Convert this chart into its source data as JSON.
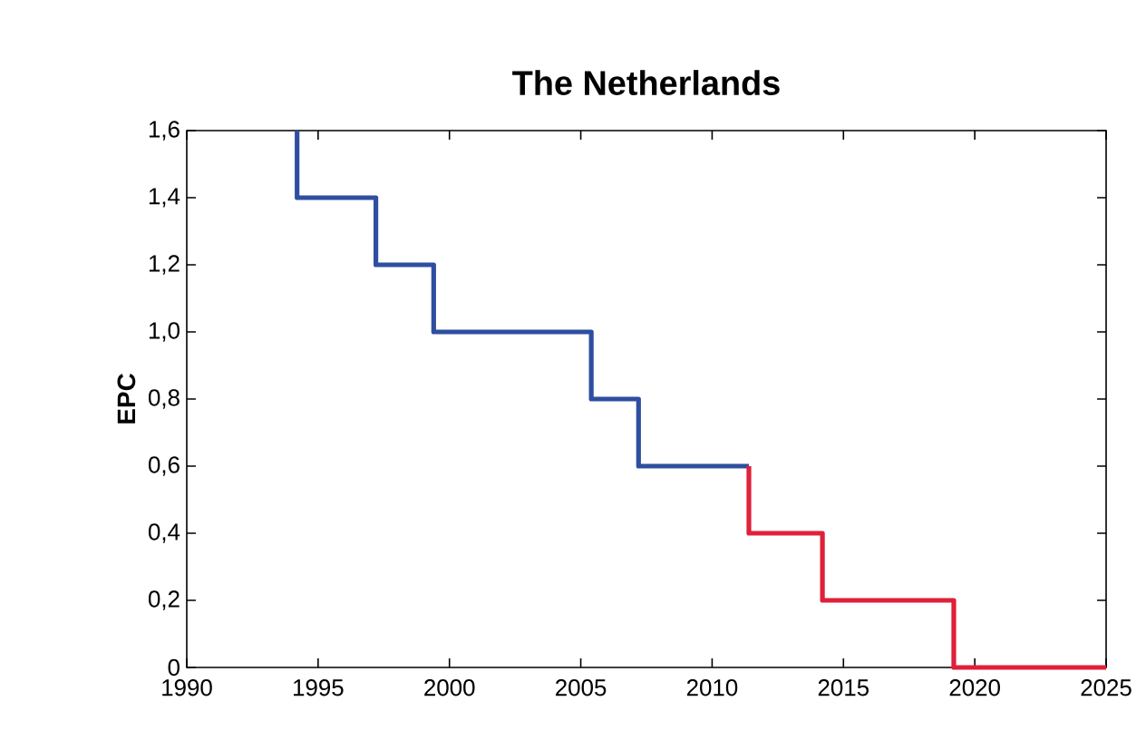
{
  "chart_data": {
    "type": "step",
    "title": "The Netherlands",
    "ylabel": "EPC",
    "series": [
      {
        "color": "#2e4ea0",
        "x": [
          1994.2,
          1994.2,
          1997.2,
          1999.4,
          2005.4,
          2007.2,
          2011.4
        ],
        "values": [
          1.6,
          1.4,
          1.2,
          1.0,
          0.8,
          0.6,
          0.6
        ]
      },
      {
        "color": "#e0203a",
        "x": [
          2011.4,
          2011.4,
          2014.2,
          2019.2,
          2025
        ],
        "values": [
          0.6,
          0.4,
          0.2,
          0,
          0
        ]
      }
    ],
    "xlim": [
      1990,
      2025
    ],
    "xticks": [
      1990,
      1995,
      2000,
      2005,
      2010,
      2015,
      2020,
      2025
    ],
    "ylim": [
      0,
      1.6
    ],
    "yticks": [
      0,
      {
        "value": 0.2,
        "label": "0,2"
      },
      {
        "value": 0.4,
        "label": "0,4"
      },
      {
        "value": 0.6,
        "label": "0,6"
      },
      {
        "value": 0.8,
        "label": "0,8"
      },
      {
        "value": 1.0,
        "label": "1,0"
      },
      {
        "value": 1.2,
        "label": "1,2"
      },
      {
        "value": 1.4,
        "label": "1,4"
      },
      {
        "value": 1.6,
        "label": "1,6"
      }
    ],
    "grid": false,
    "marker": "none",
    "line_style": "solid"
  }
}
